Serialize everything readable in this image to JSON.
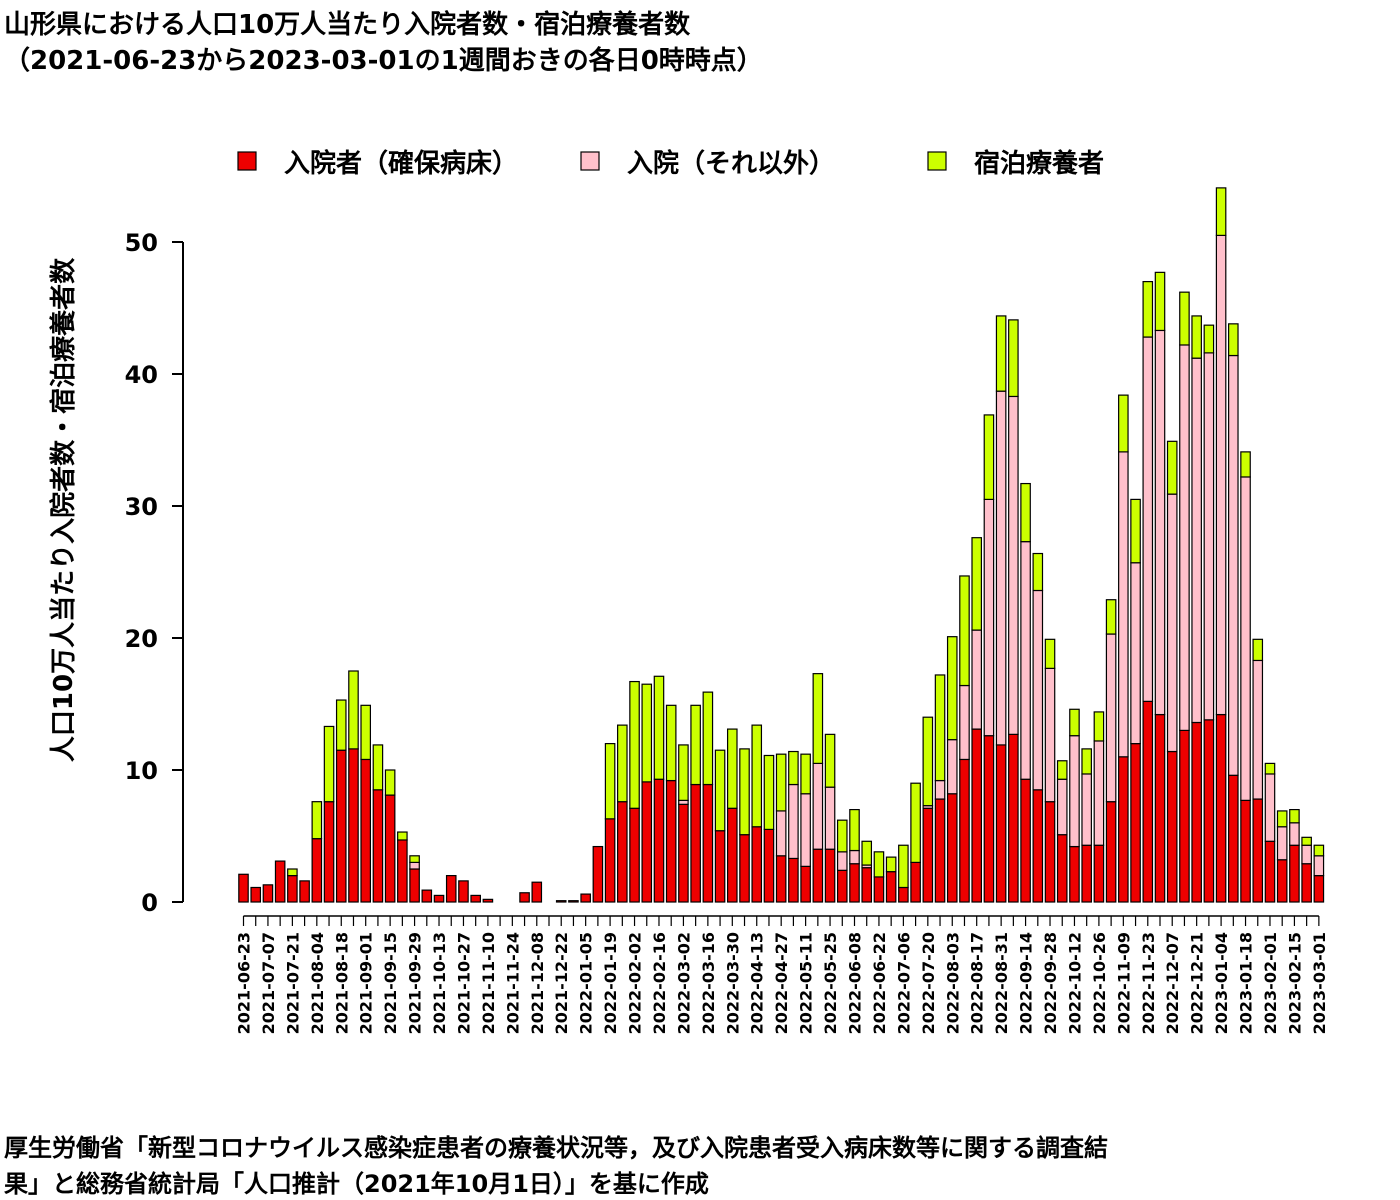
{
  "title_line1": "山形県における人口10万人当たり入院者数・宿泊療養者数",
  "title_line2": "（2021-06-23から2023-03-01の1週間おきの各日0時時点）",
  "source_line1": "厚生労働省「新型コロナウイルス感染症患者の療養状況等，及び入院患者受入病床数等に関する調査結",
  "source_line2": "果」と総務省統計局「人口推計（2021年10月1日）」を基に作成",
  "colors": {
    "hospital_secured": "#ee0000",
    "hospital_other": "#ffc0cb",
    "hotel": "#ccff00"
  },
  "chart_data": {
    "type": "bar",
    "stacked": true,
    "ylabel": "人口10万人当たり入院者数・宿泊療養者数",
    "xlabel": "",
    "ylim": [
      0,
      55
    ],
    "yticks": [
      0,
      10,
      20,
      30,
      40,
      50
    ],
    "legend_position": "top",
    "categories": [
      "2021-06-23",
      "2021-06-30",
      "2021-07-07",
      "2021-07-14",
      "2021-07-21",
      "2021-07-28",
      "2021-08-04",
      "2021-08-11",
      "2021-08-18",
      "2021-08-25",
      "2021-09-01",
      "2021-09-08",
      "2021-09-15",
      "2021-09-22",
      "2021-09-29",
      "2021-10-06",
      "2021-10-13",
      "2021-10-20",
      "2021-10-27",
      "2021-11-03",
      "2021-11-10",
      "2021-11-17",
      "2021-11-24",
      "2021-12-01",
      "2021-12-08",
      "2021-12-15",
      "2021-12-22",
      "2021-12-29",
      "2022-01-05",
      "2022-01-12",
      "2022-01-19",
      "2022-01-26",
      "2022-02-02",
      "2022-02-09",
      "2022-02-16",
      "2022-02-23",
      "2022-03-02",
      "2022-03-09",
      "2022-03-16",
      "2022-03-23",
      "2022-03-30",
      "2022-04-06",
      "2022-04-13",
      "2022-04-20",
      "2022-04-27",
      "2022-05-04",
      "2022-05-11",
      "2022-05-18",
      "2022-05-25",
      "2022-06-01",
      "2022-06-08",
      "2022-06-15",
      "2022-06-22",
      "2022-06-29",
      "2022-07-06",
      "2022-07-13",
      "2022-07-20",
      "2022-07-27",
      "2022-08-03",
      "2022-08-10",
      "2022-08-17",
      "2022-08-24",
      "2022-08-31",
      "2022-09-07",
      "2022-09-14",
      "2022-09-21",
      "2022-09-28",
      "2022-10-05",
      "2022-10-12",
      "2022-10-19",
      "2022-10-26",
      "2022-11-02",
      "2022-11-09",
      "2022-11-16",
      "2022-11-23",
      "2022-11-30",
      "2022-12-07",
      "2022-12-14",
      "2022-12-21",
      "2022-12-28",
      "2023-01-04",
      "2023-01-11",
      "2023-01-18",
      "2023-01-25",
      "2023-02-01",
      "2023-02-08",
      "2023-02-15",
      "2023-02-22",
      "2023-03-01"
    ],
    "tick_labels": [
      "2021-06-23",
      "2021-07-07",
      "2021-07-21",
      "2021-08-04",
      "2021-08-18",
      "2021-09-01",
      "2021-09-15",
      "2021-09-29",
      "2021-10-13",
      "2021-10-27",
      "2021-11-10",
      "2021-11-24",
      "2021-12-08",
      "2021-12-22",
      "2022-01-05",
      "2022-01-19",
      "2022-02-02",
      "2022-02-16",
      "2022-03-02",
      "2022-03-16",
      "2022-03-30",
      "2022-04-13",
      "2022-04-27",
      "2022-05-11",
      "2022-05-25",
      "2022-06-08",
      "2022-06-22",
      "2022-07-06",
      "2022-07-20",
      "2022-08-03",
      "2022-08-17",
      "2022-08-31",
      "2022-09-14",
      "2022-09-28",
      "2022-10-12",
      "2022-10-26",
      "2022-11-09",
      "2022-11-23",
      "2022-12-07",
      "2022-12-21",
      "2023-01-04",
      "2023-01-18",
      "2023-02-01",
      "2023-02-15",
      "2023-03-01"
    ],
    "series": [
      {
        "name": "入院者（確保病床）",
        "color": "#ee0000",
        "values": [
          2.1,
          1.1,
          1.3,
          3.1,
          2.0,
          1.6,
          4.8,
          7.6,
          11.5,
          11.6,
          10.8,
          8.5,
          8.1,
          4.7,
          2.5,
          0.9,
          0.5,
          2.0,
          1.6,
          0.5,
          0.2,
          0,
          0,
          0.7,
          1.5,
          0,
          0.1,
          0.1,
          0.6,
          4.2,
          6.3,
          7.6,
          7.1,
          9.1,
          9.3,
          9.2,
          7.4,
          8.9,
          8.9,
          5.4,
          7.1,
          5.1,
          5.7,
          5.5,
          3.5,
          3.3,
          2.7,
          4.0,
          4.0,
          2.4,
          2.9,
          2.6,
          1.9,
          2.3,
          1.1,
          3.0,
          7.1,
          7.8,
          8.2,
          10.8,
          13.1,
          12.6,
          11.9,
          12.7,
          9.3,
          8.5,
          7.6,
          5.1,
          4.2,
          4.3,
          4.3,
          7.6,
          11.0,
          12.0,
          15.2,
          14.2,
          11.4,
          13.0,
          13.6,
          13.8,
          14.2,
          9.6,
          7.7,
          7.8,
          4.6,
          3.2,
          4.3,
          2.9,
          2.0
        ]
      },
      {
        "name": "入院（それ以外）",
        "color": "#ffc0cb",
        "values": [
          0,
          0,
          0,
          0,
          0,
          0,
          0,
          0,
          0,
          0,
          0,
          0,
          0,
          0,
          0.5,
          0,
          0,
          0,
          0,
          0,
          0,
          0,
          0,
          0,
          0,
          0,
          0,
          0,
          0,
          0,
          0,
          0,
          0,
          0,
          0,
          0,
          0.3,
          0,
          0,
          0,
          0,
          0,
          0,
          0,
          3.4,
          5.6,
          5.5,
          6.5,
          4.7,
          1.4,
          1.0,
          0.2,
          0,
          0,
          0,
          0,
          0.2,
          1.4,
          4.1,
          5.6,
          7.5,
          17.9,
          26.8,
          25.6,
          18.0,
          15.1,
          10.1,
          4.2,
          8.4,
          5.4,
          7.9,
          12.7,
          23.1,
          13.7,
          27.6,
          29.1,
          19.5,
          29.2,
          27.6,
          27.8,
          36.3,
          31.8,
          24.5,
          10.5,
          5.1,
          2.5,
          1.7,
          1.4,
          1.5
        ]
      },
      {
        "name": "宿泊療養者",
        "color": "#ccff00",
        "values": [
          0,
          0,
          0,
          0,
          0.5,
          0,
          2.8,
          5.7,
          3.8,
          5.9,
          4.1,
          3.4,
          1.9,
          0.6,
          0.5,
          0,
          0,
          0,
          0,
          0,
          0,
          0,
          0,
          0,
          0,
          0,
          0,
          0,
          0,
          0,
          5.7,
          5.8,
          9.6,
          7.4,
          7.8,
          5.7,
          4.2,
          6.0,
          7.0,
          6.1,
          6.0,
          6.5,
          7.7,
          5.6,
          4.3,
          2.5,
          3.0,
          6.8,
          4.0,
          2.4,
          3.1,
          1.8,
          1.9,
          1.1,
          3.2,
          6.0,
          6.7,
          8.0,
          7.8,
          8.3,
          7.0,
          6.4,
          5.7,
          5.8,
          4.4,
          2.8,
          2.2,
          1.4,
          2.0,
          1.9,
          2.2,
          2.6,
          4.3,
          4.8,
          4.2,
          4.4,
          4.0,
          4.0,
          3.2,
          2.1,
          3.6,
          2.4,
          1.9,
          1.6,
          0.8,
          1.2,
          1.0,
          0.6,
          0.8
        ]
      }
    ]
  }
}
